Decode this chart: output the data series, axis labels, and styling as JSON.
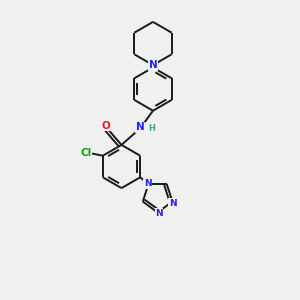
{
  "background_color": "#f0f0f0",
  "bond_color": "#1a1a1a",
  "N_color": "#2020ee",
  "O_color": "#dd2020",
  "Cl_color": "#00aa00",
  "H_color": "#559999",
  "lw": 1.4,
  "fs": 7.5,
  "figsize": [
    3.0,
    3.0
  ],
  "dpi": 100,
  "xlim": [
    0,
    10
  ],
  "ylim": [
    0,
    10
  ]
}
